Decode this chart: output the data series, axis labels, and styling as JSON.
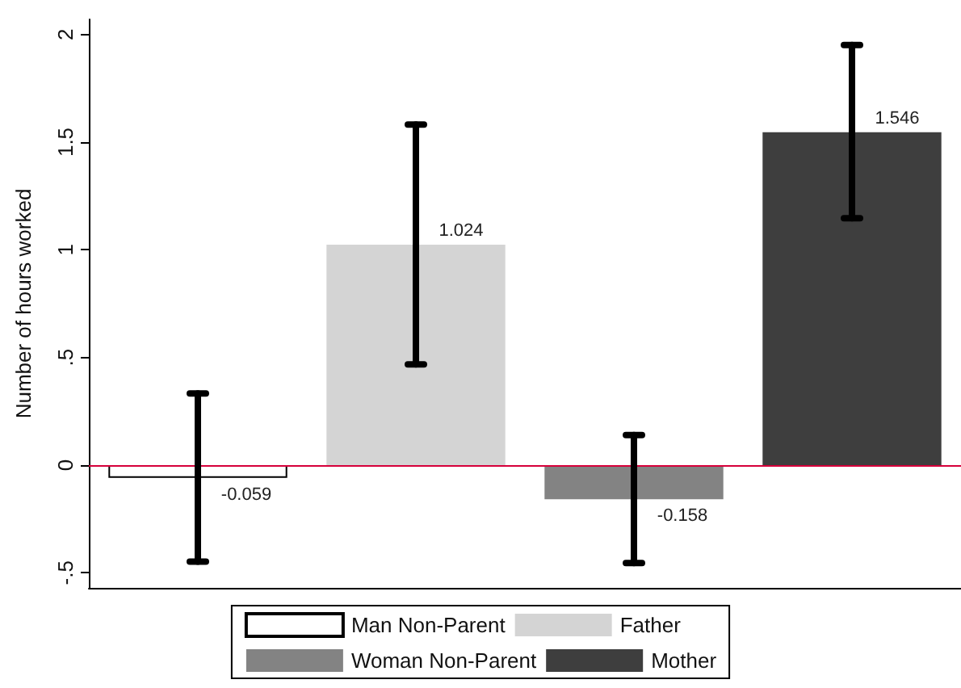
{
  "chart_data": {
    "type": "bar",
    "ylabel": "Number of hours worked",
    "categories": [
      null,
      null,
      null,
      null
    ],
    "series": [
      {
        "name": "Man Non-Parent",
        "color": "#ffffff",
        "values": [
          -0.059,
          null,
          null,
          null
        ],
        "errors": [
          [
            -0.448,
            0.333
          ],
          null,
          null,
          null
        ]
      },
      {
        "name": "Father",
        "color": "#d4d4d4",
        "values": [
          null,
          1.024,
          null,
          null
        ],
        "errors": [
          null,
          [
            0.468,
            1.582
          ],
          null,
          null
        ]
      },
      {
        "name": "Woman Non-Parent",
        "color": "#838383",
        "values": [
          null,
          null,
          -0.158,
          null
        ],
        "errors": [
          null,
          null,
          [
            -0.455,
            0.14
          ],
          null
        ]
      },
      {
        "name": "Mother",
        "color": "#3e3e3e",
        "values": [
          null,
          null,
          null,
          1.546
        ],
        "errors": [
          null,
          null,
          null,
          [
            1.147,
            1.951
          ]
        ]
      }
    ],
    "ylim": [
      -0.57,
      2.07
    ],
    "yticks": [
      {
        "value": -0.5,
        "label": "-.5"
      },
      0,
      {
        "value": 0.5,
        "label": ".5"
      },
      1,
      1.5,
      2
    ],
    "ref_lines": [
      {
        "axis": "y",
        "value": 0,
        "color": "#d6003a"
      }
    ],
    "data_labels": true,
    "grid": false,
    "legend": "bottom"
  }
}
